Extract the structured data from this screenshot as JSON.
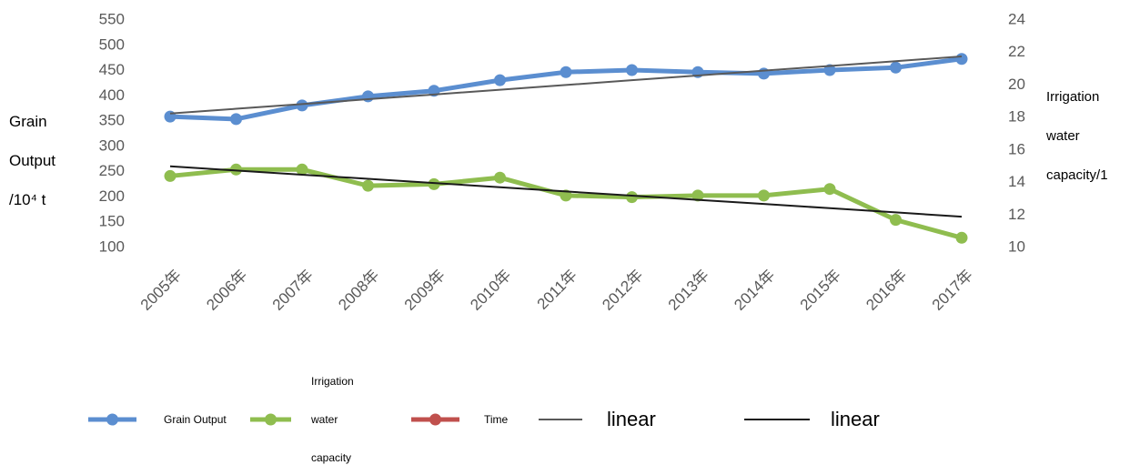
{
  "chart_data": {
    "type": "line",
    "ylabel": "Grain Output /10⁴ t",
    "y2label": "Irrigation water capacity/1",
    "categories": [
      "2005年",
      "2006年",
      "2007年",
      "2008年",
      "2009年",
      "2010年",
      "2011年",
      "2012年",
      "2013年",
      "2014年",
      "2015年",
      "2016年",
      "2017年"
    ],
    "ylim": [
      100,
      550
    ],
    "yticks": [
      100,
      150,
      200,
      250,
      300,
      350,
      400,
      450,
      500,
      550
    ],
    "y2lim": [
      10,
      24
    ],
    "y2ticks": [
      10,
      12,
      14,
      16,
      18,
      20,
      22,
      24
    ],
    "series": [
      {
        "name": "Grain Output",
        "color": "#5b8ed0",
        "marker": true,
        "values": [
          359,
          354,
          381,
          399,
          410,
          431,
          447,
          451,
          447,
          444,
          451,
          456,
          473
        ]
      },
      {
        "name": "Irrigation water capacity",
        "color": "#8fbd4f",
        "marker": true,
        "axis": "y2",
        "values": [
          14.4,
          14.8,
          14.8,
          13.8,
          13.9,
          14.3,
          13.2,
          13.1,
          13.2,
          13.2,
          13.6,
          11.7,
          10.6
        ]
      },
      {
        "name": "Time",
        "color": "#c0504d",
        "marker": true,
        "values": [
          null,
          null,
          null,
          null,
          null,
          null,
          null,
          null,
          null,
          null,
          null,
          null,
          null
        ]
      },
      {
        "name": "linear",
        "color": "#595959",
        "marker": false,
        "values": [
          365,
          374.4,
          383.8,
          393.3,
          402.7,
          412.1,
          421.5,
          430.9,
          440.3,
          449.8,
          459.2,
          468.6,
          478
        ]
      },
      {
        "name": "linear",
        "color": "#1a1a1a",
        "marker": false,
        "axis": "y2",
        "values": [
          15,
          14.74,
          14.48,
          14.23,
          13.97,
          13.71,
          13.45,
          13.19,
          12.93,
          12.68,
          12.42,
          12.16,
          11.9
        ]
      }
    ]
  }
}
